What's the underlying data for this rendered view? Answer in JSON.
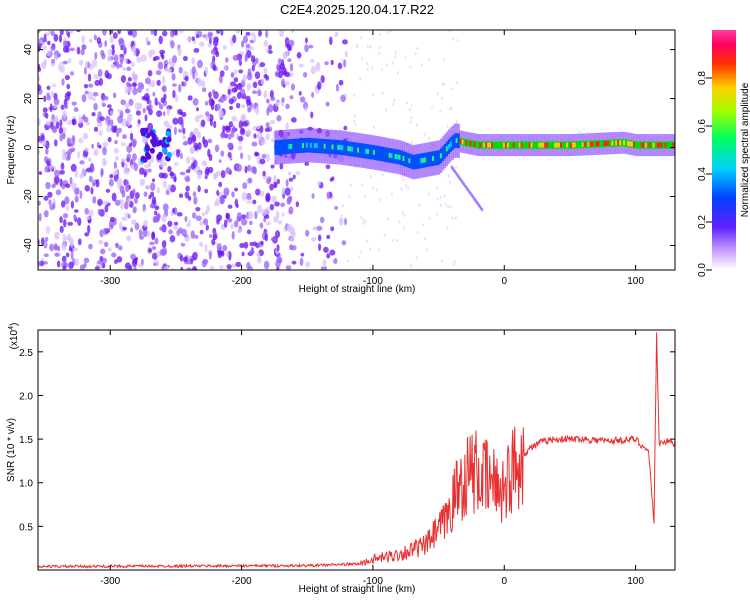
{
  "title": "C2E4.2025.120.04.17.R22",
  "chart_data": [
    {
      "type": "heatmap",
      "xlabel": "Height of straight line (km)",
      "ylabel": "Frequency (Hz)",
      "xlim": [
        -355,
        130
      ],
      "ylim": [
        -50,
        48
      ],
      "xticks": [
        "-300",
        "-200",
        "-100",
        "0",
        "100"
      ],
      "yticks": [
        "40",
        "20",
        "0",
        "-20",
        "-40"
      ],
      "colorbar": {
        "label": "Normalized spectral amplitude",
        "range": [
          0,
          1
        ],
        "ticks": [
          "0.0",
          "0.2",
          "0.4",
          "0.6",
          "0.8"
        ]
      },
      "track": {
        "x": [
          -175,
          -150,
          -125,
          -100,
          -80,
          -70,
          -60,
          -50,
          -42,
          -38,
          -30,
          -20,
          0,
          50,
          90,
          100,
          130
        ],
        "y": [
          0,
          1,
          0,
          -2,
          -4,
          -6,
          -5,
          -4,
          1,
          3,
          2,
          1,
          1,
          1,
          2,
          1,
          1
        ]
      }
    },
    {
      "type": "line",
      "xlabel": "Height of straight line (km)",
      "ylabel": "SNR (10 * v/v)",
      "scale_note": "(x10",
      "scale_exp": "4",
      "xlim": [
        -355,
        130
      ],
      "ylim": [
        0,
        2.75
      ],
      "xticks": [
        "-300",
        "-200",
        "-100",
        "0",
        "100"
      ],
      "yticks": [
        "0.5",
        "1.0",
        "1.5",
        "2.0",
        "2.5"
      ],
      "series": [
        {
          "color": "#e83030",
          "x": [
            -355,
            -150,
            -110,
            -100,
            -80,
            -60,
            -45,
            -35,
            -25,
            -10,
            0,
            10,
            20,
            30,
            40,
            60,
            80,
            100,
            110,
            114,
            116,
            118,
            122,
            130
          ],
          "y": [
            0.04,
            0.05,
            0.07,
            0.12,
            0.18,
            0.28,
            0.55,
            0.95,
            1.15,
            1.0,
            0.95,
            1.25,
            1.4,
            1.48,
            1.5,
            1.5,
            1.48,
            1.5,
            1.35,
            0.55,
            2.7,
            1.45,
            1.48,
            1.45
          ]
        }
      ]
    }
  ]
}
